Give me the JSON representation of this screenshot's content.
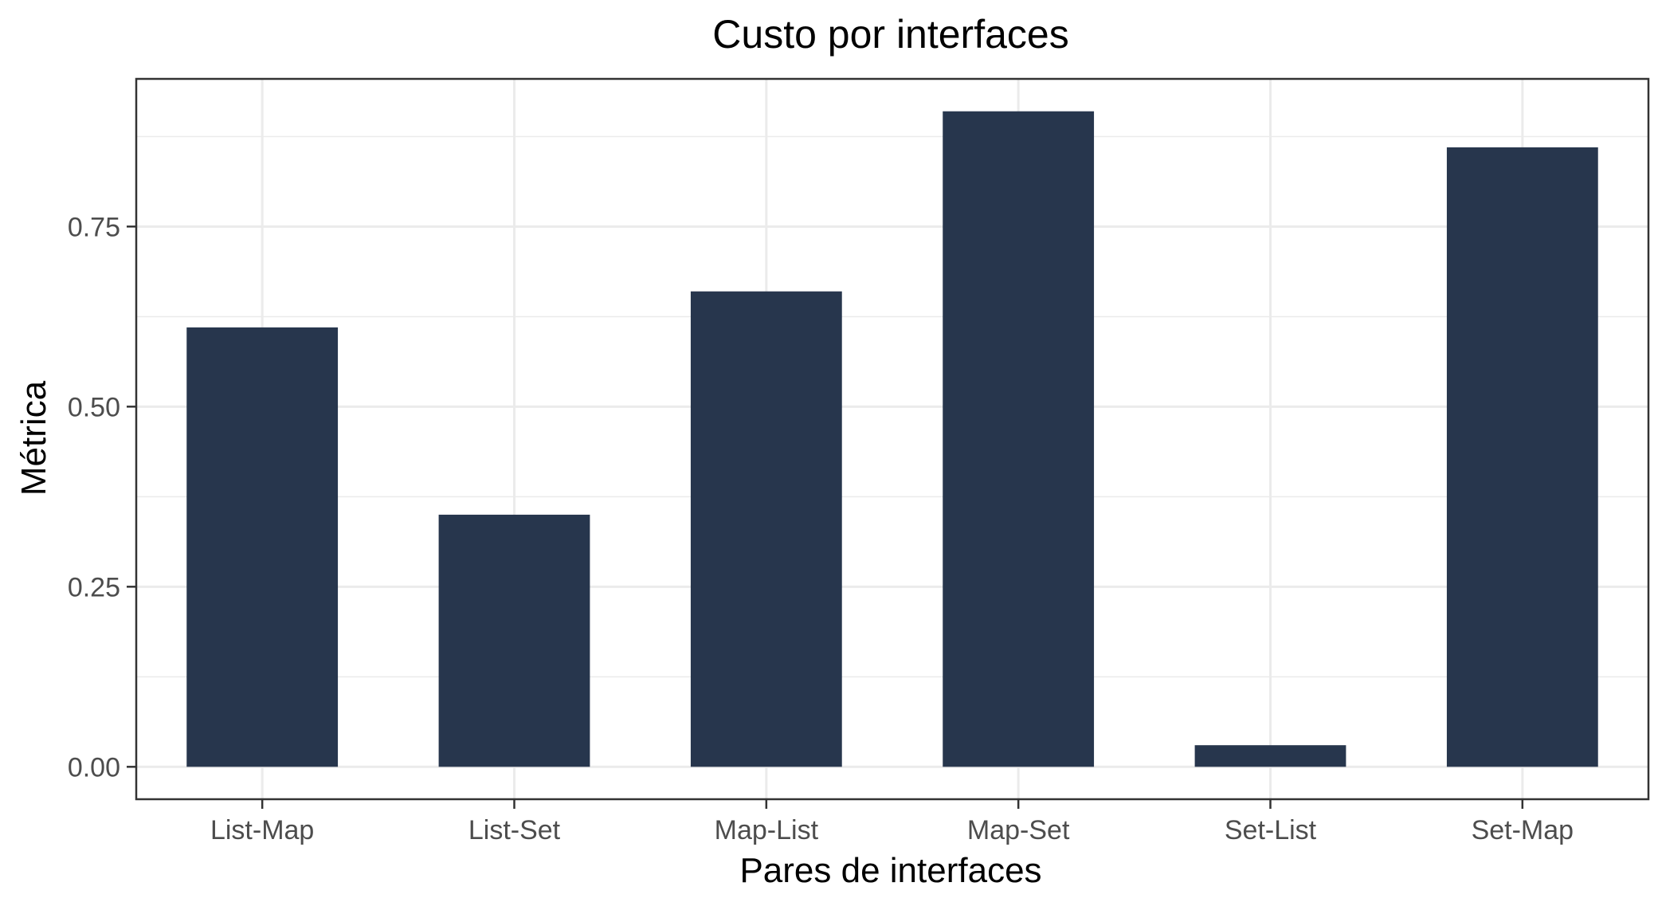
{
  "chart_data": {
    "type": "bar",
    "title": "Custo por interfaces",
    "xlabel": "Pares de interfaces",
    "ylabel": "Métrica",
    "categories": [
      "List-Map",
      "List-Set",
      "Map-List",
      "Map-Set",
      "Set-List",
      "Set-Map"
    ],
    "values": [
      0.61,
      0.35,
      0.66,
      0.91,
      0.03,
      0.86
    ],
    "ylim": [
      -0.045,
      0.955
    ],
    "yticks": [
      0.0,
      0.25,
      0.5,
      0.75
    ],
    "ytick_labels": [
      "0.00",
      "0.25",
      "0.50",
      "0.75"
    ],
    "bar_color": "#27364d",
    "grid": true,
    "legend": "none"
  }
}
